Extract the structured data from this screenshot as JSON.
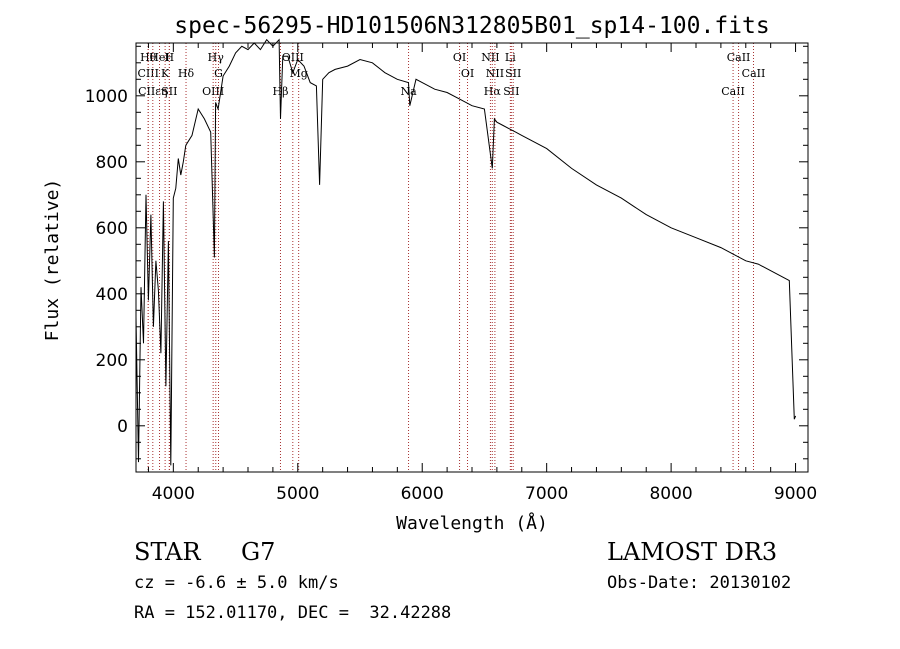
{
  "chart_data": {
    "type": "line",
    "title": "spec-56295-HD101506N312805B01_sp14-100.fits",
    "xlabel": "Wavelength (Å)",
    "ylabel": "Flux (relative)",
    "xlim": [
      3700,
      9100
    ],
    "ylim": [
      -140,
      1160
    ],
    "xticks": [
      4000,
      5000,
      6000,
      7000,
      8000,
      9000
    ],
    "xtick_labels": [
      "4000",
      "5000",
      "6000",
      "7000",
      "8000",
      "9000"
    ],
    "yticks": [
      0,
      200,
      400,
      600,
      800,
      1000
    ],
    "ytick_labels": [
      "0",
      "200",
      "400",
      "600",
      "800",
      "1000"
    ],
    "series": [
      {
        "name": "spectrum",
        "x": [
          3700,
          3720,
          3740,
          3760,
          3780,
          3800,
          3820,
          3840,
          3860,
          3880,
          3900,
          3920,
          3940,
          3960,
          3980,
          4000,
          4020,
          4040,
          4060,
          4080,
          4100,
          4150,
          4200,
          4250,
          4300,
          4330,
          4340,
          4360,
          4400,
          4450,
          4500,
          4550,
          4600,
          4650,
          4700,
          4750,
          4800,
          4850,
          4861,
          4880,
          4920,
          4960,
          5000,
          5050,
          5100,
          5150,
          5175,
          5200,
          5250,
          5300,
          5400,
          5500,
          5600,
          5700,
          5800,
          5890,
          5900,
          5950,
          6000,
          6100,
          6200,
          6300,
          6400,
          6500,
          6563,
          6580,
          6600,
          6650,
          6700,
          6750,
          6800,
          7000,
          7200,
          7400,
          7600,
          7800,
          8000,
          8200,
          8400,
          8500,
          8600,
          8700,
          8800,
          8950,
          8990,
          9000
        ],
        "y": [
          330,
          -110,
          420,
          250,
          700,
          380,
          640,
          300,
          500,
          410,
          220,
          680,
          120,
          560,
          -120,
          690,
          720,
          810,
          760,
          800,
          850,
          880,
          960,
          930,
          890,
          510,
          980,
          960,
          1060,
          1090,
          1130,
          1150,
          1140,
          1160,
          1140,
          1170,
          1150,
          1170,
          930,
          1120,
          1120,
          1070,
          1110,
          1090,
          1040,
          1030,
          730,
          1050,
          1070,
          1080,
          1090,
          1110,
          1100,
          1070,
          1050,
          1040,
          970,
          1050,
          1040,
          1020,
          1010,
          990,
          970,
          960,
          780,
          930,
          920,
          910,
          900,
          890,
          880,
          840,
          780,
          730,
          690,
          640,
          600,
          570,
          540,
          520,
          500,
          490,
          470,
          440,
          20,
          30
        ]
      }
    ],
    "lines": [
      {
        "label": "Hθ",
        "x": 3798
      },
      {
        "label": "CIII",
        "x": 3798
      },
      {
        "label": "CIIεη",
        "x": 3835
      },
      {
        "label": "HeI",
        "x": 3889
      },
      {
        "label": "K",
        "x": 3934
      },
      {
        "label": "SII",
        "x": 3968
      },
      {
        "label": "H",
        "x": 3968
      },
      {
        "label": "Hδ",
        "x": 4102
      },
      {
        "label": "OIII",
        "x": 4320
      },
      {
        "label": "Hγ",
        "x": 4341
      },
      {
        "label": "G",
        "x": 4363
      },
      {
        "label": "Hβ",
        "x": 4861
      },
      {
        "label": "OIII",
        "x": 4960
      },
      {
        "label": "Mg",
        "x": 5007
      },
      {
        "label": "Na",
        "x": 5890
      },
      {
        "label": "OI",
        "x": 6300
      },
      {
        "label": "OI",
        "x": 6364
      },
      {
        "label": "Hα",
        "x": 6563
      },
      {
        "label": "NII",
        "x": 6548
      },
      {
        "label": "NII",
        "x": 6584
      },
      {
        "label": "SII",
        "x": 6716
      },
      {
        "label": "Li",
        "x": 6708
      },
      {
        "label": "SII",
        "x": 6731
      },
      {
        "label": "CaII",
        "x": 8498
      },
      {
        "label": "CaII",
        "x": 8542
      },
      {
        "label": "CaII",
        "x": 8662
      }
    ]
  },
  "info": {
    "object_type": "STAR",
    "subclass": "G7",
    "survey": "LAMOST DR3",
    "velocity": "cz = -6.6 ± 5.0 km/s",
    "obs_date": "Obs-Date: 20130102",
    "coords": "RA = 152.01170, DEC =  32.42288"
  }
}
